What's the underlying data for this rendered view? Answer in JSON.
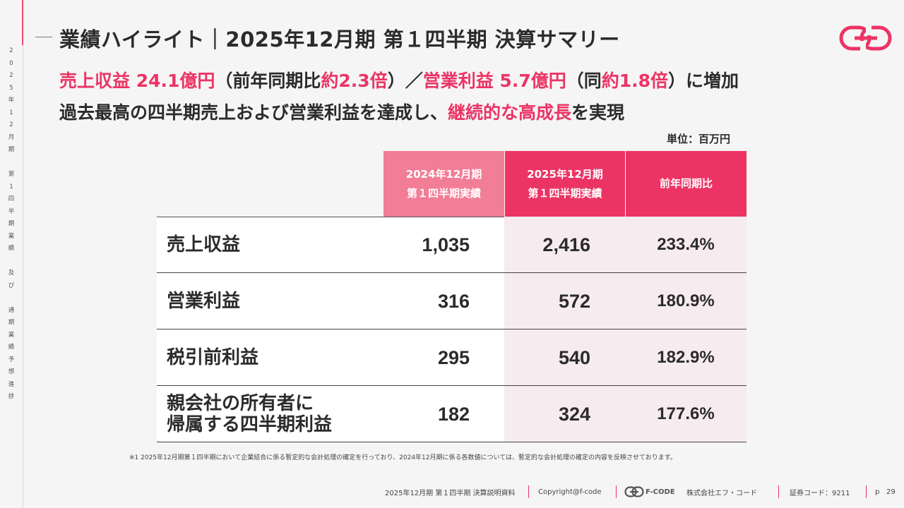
{
  "sidebar": {
    "chars": [
      "2",
      "0",
      "2",
      "5",
      "年",
      "1",
      "2",
      "月",
      "期",
      "",
      "第",
      "1",
      "四",
      "半",
      "期",
      "業",
      "績",
      "",
      "及",
      "び",
      "",
      "通",
      "期",
      "業",
      "績",
      "予",
      "想",
      "進",
      "捗"
    ]
  },
  "title": "業績ハイライト｜2025年12月期 第１四半期 決算サマリー",
  "headline1": {
    "part1": "売上収益 24.1億円",
    "part2": "（前年同期比",
    "part3": "約2.3倍",
    "part4": "）／",
    "part5": "営業利益 5.7億円",
    "part6": "（同",
    "part7": "約1.8倍",
    "part8": "）に増加"
  },
  "headline2": {
    "part1": "過去最高の四半期売上および営業利益を達成し、",
    "part2": "継続的な高成長",
    "part3": "を実現"
  },
  "unit": "単位：百万円",
  "table": {
    "headers": {
      "prev_line1": "2024年12月期",
      "prev_line2": "第１四半期実績",
      "curr_line1": "2025年12月期",
      "curr_line2": "第１四半期実績",
      "ratio": "前年同期比"
    },
    "rows": [
      {
        "label1": "売上収益",
        "label2": "",
        "prev": "1,035",
        "curr": "2,416",
        "ratio": "233.4%"
      },
      {
        "label1": "営業利益",
        "label2": "",
        "prev": "316",
        "curr": "572",
        "ratio": "180.9%"
      },
      {
        "label1": "税引前利益",
        "label2": "",
        "prev": "295",
        "curr": "540",
        "ratio": "182.9%"
      },
      {
        "label1": "親会社の所有者に",
        "label2": "帰属する四半期利益",
        "prev": "182",
        "curr": "324",
        "ratio": "177.6%"
      }
    ]
  },
  "footnote": "※1  2025年12月期第１四半期において企業結合に係る暫定的な会計処理の確定を行っており、2024年12月期に係る各数値については、暫定的な会計処理の確定の内容を反映させております。",
  "footer": {
    "doc": "2025年12月期 第１四半期 決算説明資料",
    "copyright": "Copyright@f-code",
    "brand": "F-CODE",
    "company": "株式会社エフ・コード",
    "code": "証券コード：9211",
    "page_prefix": "p",
    "page": "29"
  },
  "colors": {
    "accent": "#ec3464",
    "accent_light": "#f27d96",
    "highlight_bg": "#f6ebee"
  }
}
